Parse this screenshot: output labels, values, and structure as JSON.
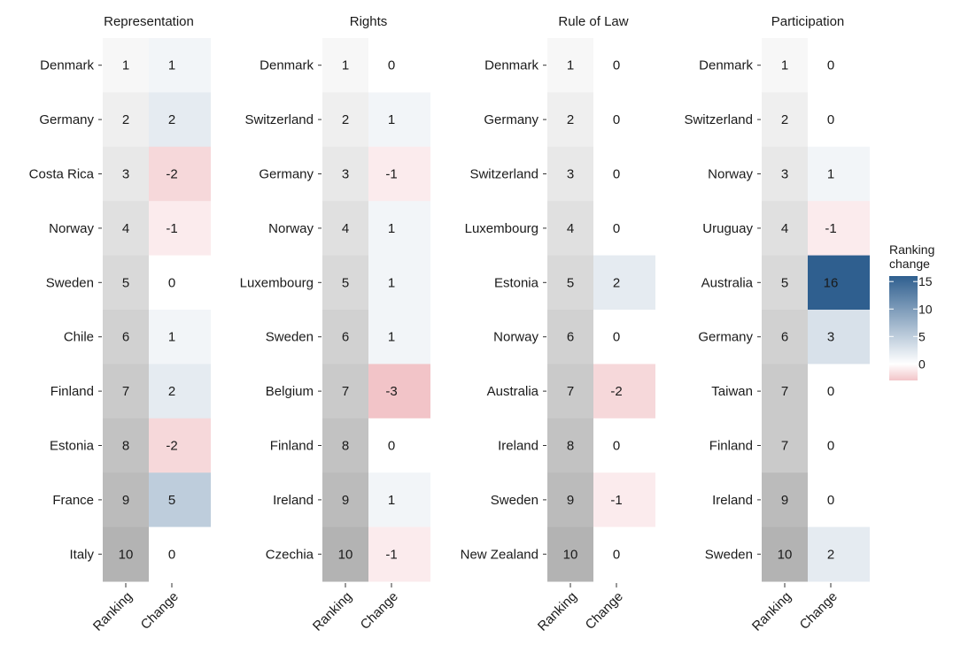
{
  "chart_data": {
    "type": "heatmap",
    "x_tick_labels": [
      "Ranking",
      "Change"
    ],
    "legend": {
      "title_lines": [
        "Ranking",
        "change"
      ],
      "ticks": [
        15,
        10,
        5,
        0
      ],
      "range": [
        -3,
        16
      ],
      "color_low": "#f2c4c8",
      "color_mid": "#ffffff",
      "color_high": "#2f5f8f"
    },
    "ranking_colors": {
      "low": "#f7f7f7",
      "high": "#b3b3b3"
    },
    "panels": [
      {
        "title": "Representation",
        "countries": [
          "Denmark",
          "Germany",
          "Costa Rica",
          "Norway",
          "Sweden",
          "Chile",
          "Finland",
          "Estonia",
          "France",
          "Italy"
        ],
        "ranking": [
          1,
          2,
          3,
          4,
          5,
          6,
          7,
          8,
          9,
          10
        ],
        "change": [
          1,
          2,
          -2,
          -1,
          0,
          1,
          2,
          -2,
          5,
          0
        ]
      },
      {
        "title": "Rights",
        "countries": [
          "Denmark",
          "Switzerland",
          "Germany",
          "Norway",
          "Luxembourg",
          "Sweden",
          "Belgium",
          "Finland",
          "Ireland",
          "Czechia"
        ],
        "ranking": [
          1,
          2,
          3,
          4,
          5,
          6,
          7,
          8,
          9,
          10
        ],
        "change": [
          0,
          1,
          -1,
          1,
          1,
          1,
          -3,
          0,
          1,
          -1
        ]
      },
      {
        "title": "Rule of Law",
        "countries": [
          "Denmark",
          "Germany",
          "Switzerland",
          "Luxembourg",
          "Estonia",
          "Norway",
          "Australia",
          "Ireland",
          "Sweden",
          "New Zealand"
        ],
        "ranking": [
          1,
          2,
          3,
          4,
          5,
          6,
          7,
          8,
          9,
          10
        ],
        "change": [
          0,
          0,
          0,
          0,
          2,
          0,
          -2,
          0,
          -1,
          0
        ]
      },
      {
        "title": "Participation",
        "countries": [
          "Denmark",
          "Switzerland",
          "Norway",
          "Uruguay",
          "Australia",
          "Germany",
          "Taiwan",
          "Finland",
          "Ireland",
          "Sweden"
        ],
        "ranking": [
          1,
          2,
          3,
          4,
          5,
          6,
          7,
          7,
          9,
          10
        ],
        "change": [
          0,
          0,
          1,
          -1,
          16,
          3,
          0,
          0,
          0,
          2
        ]
      }
    ]
  }
}
